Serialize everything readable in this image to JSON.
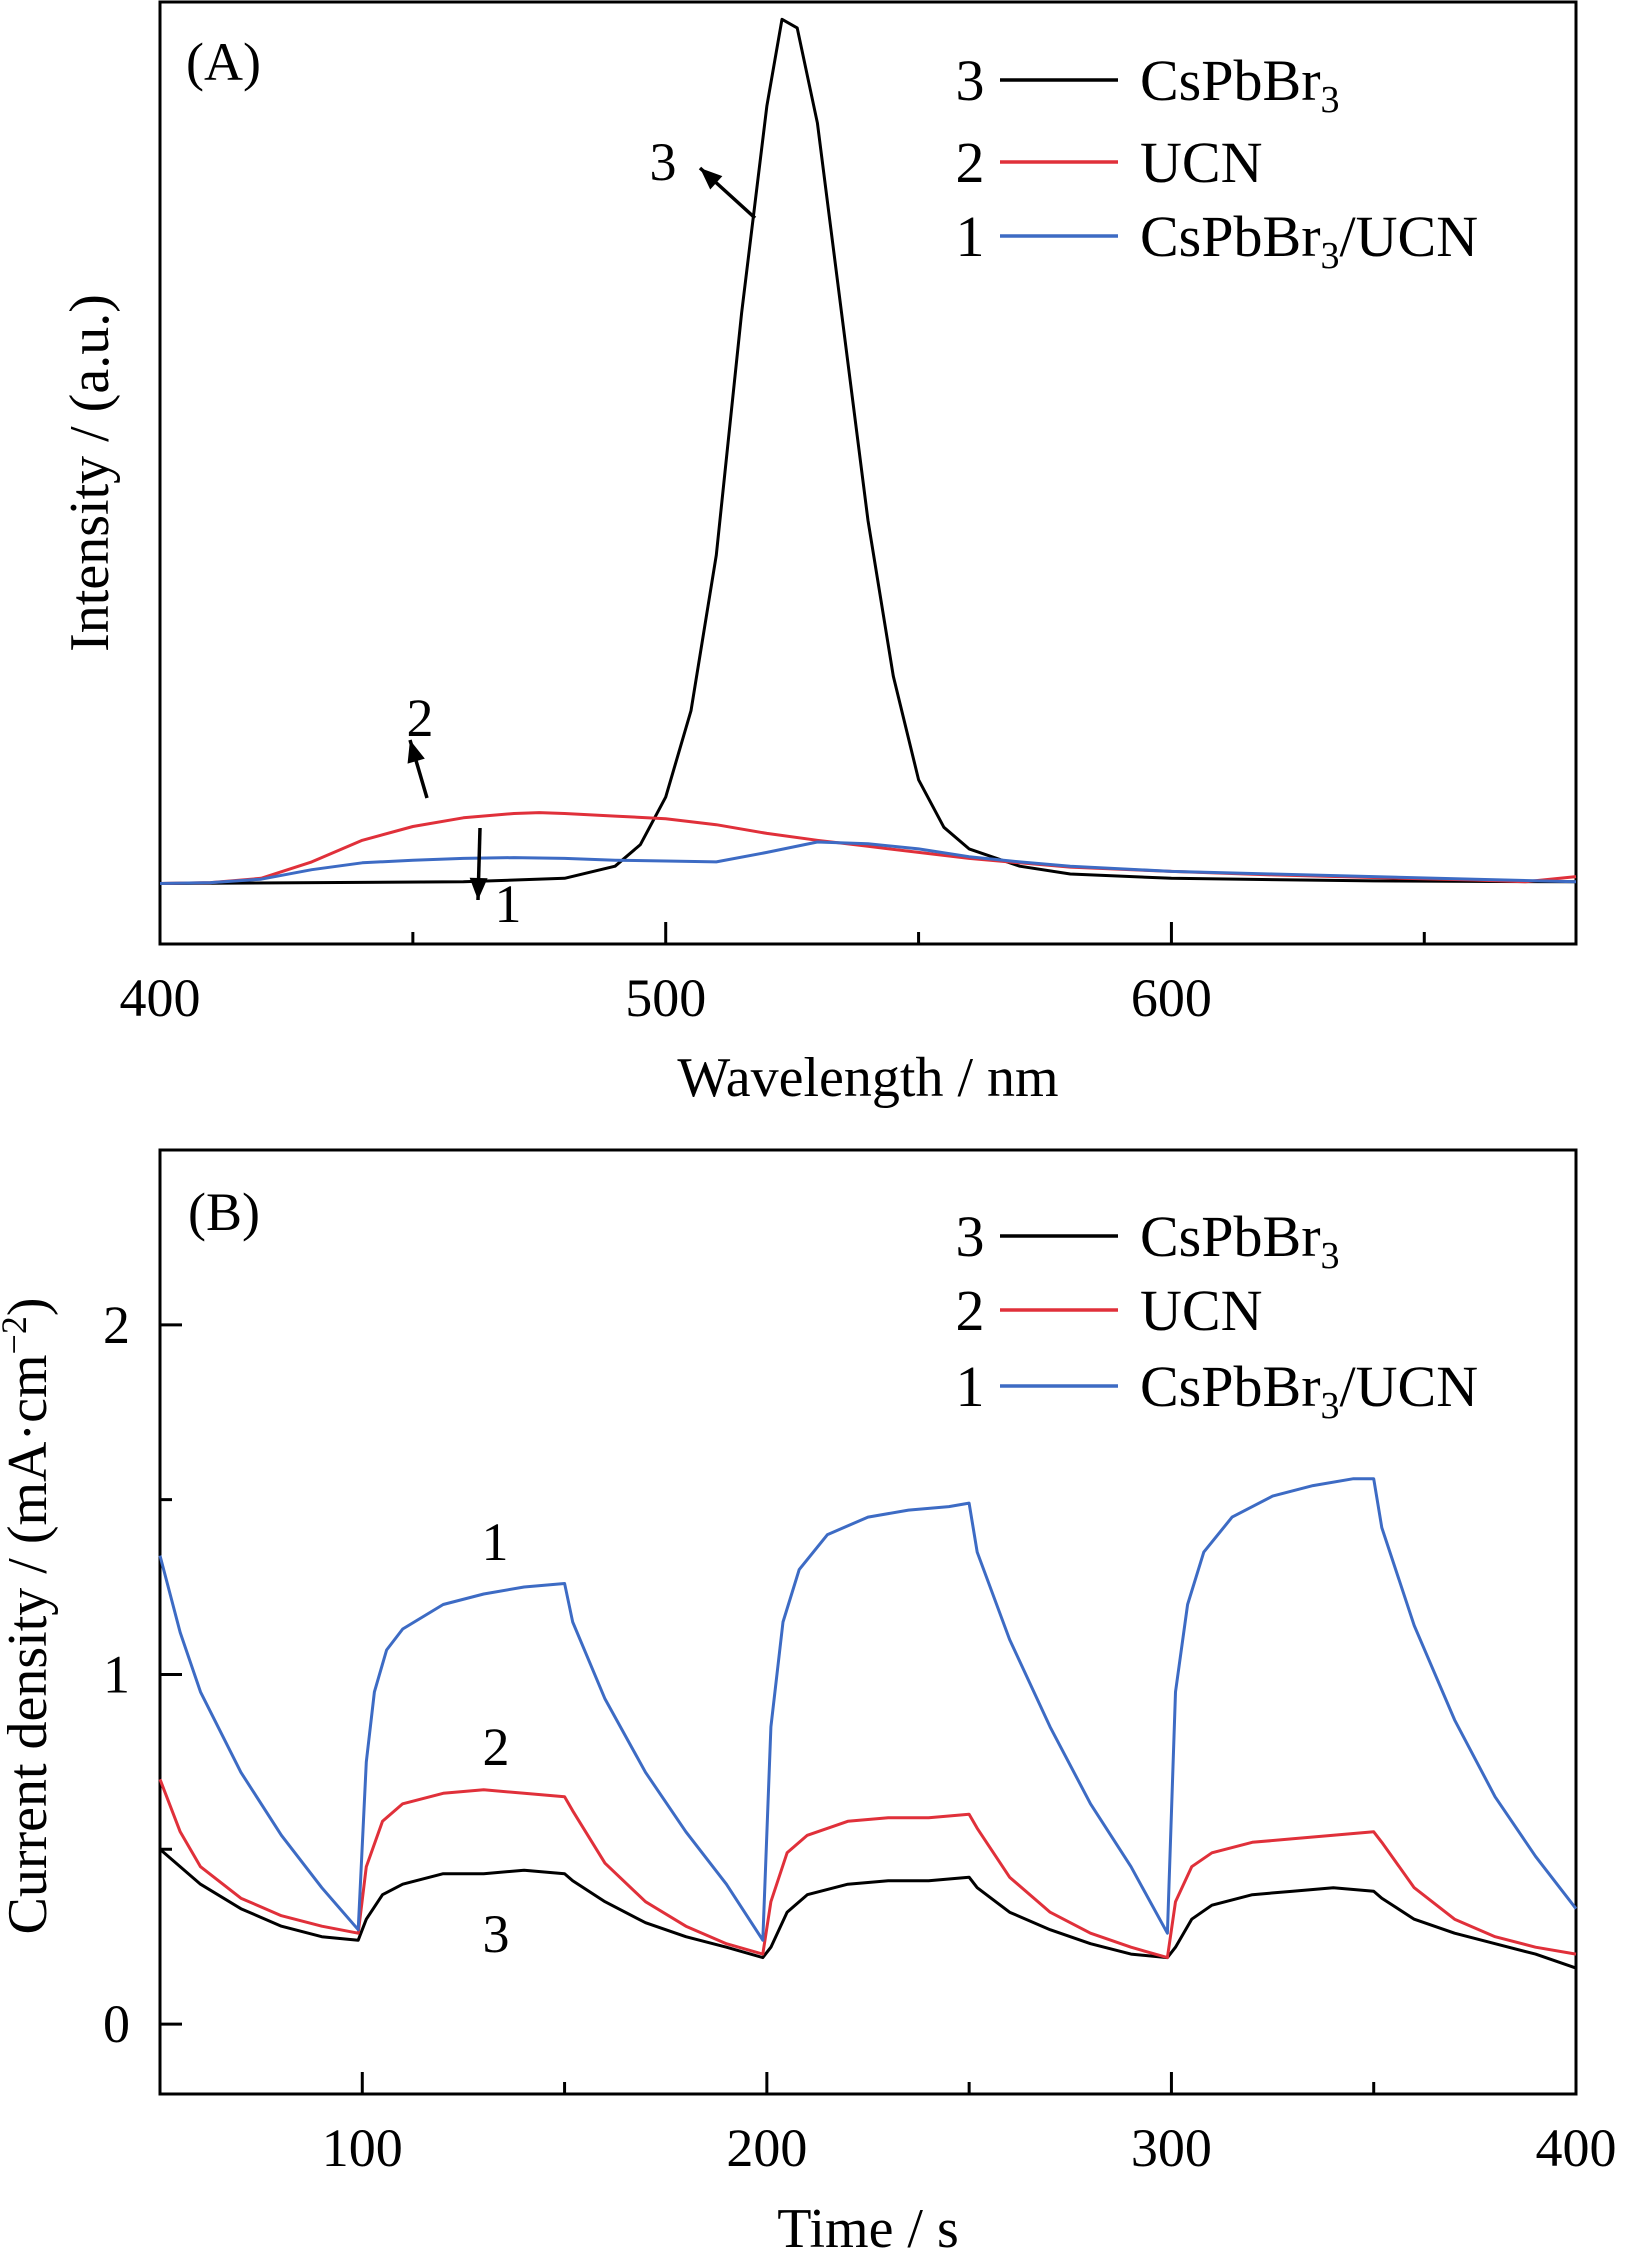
{
  "chart_data": [
    {
      "type": "line",
      "panel": "(A)",
      "xlabel": "Wavelength / nm",
      "ylabel": "Intensity / (a.u.)",
      "xlim": [
        400,
        680
      ],
      "ylim": [
        -0.07,
        1.02
      ],
      "xticks": [
        400,
        500,
        600
      ],
      "xminor": [
        450,
        550,
        650
      ],
      "legend_position": "top-right",
      "series": [
        {
          "id": "3",
          "name": "CsPbBr3",
          "label_sub": "3",
          "label_rest": "",
          "color": "#000000",
          "points": [
            [
              400,
              0
            ],
            [
              460,
              0.002
            ],
            [
              480,
              0.006
            ],
            [
              490,
              0.02
            ],
            [
              495,
              0.045
            ],
            [
              500,
              0.1
            ],
            [
              505,
              0.2
            ],
            [
              510,
              0.38
            ],
            [
              515,
              0.66
            ],
            [
              520,
              0.9
            ],
            [
              523,
              1.0
            ],
            [
              526,
              0.99
            ],
            [
              530,
              0.88
            ],
            [
              535,
              0.65
            ],
            [
              540,
              0.42
            ],
            [
              545,
              0.24
            ],
            [
              550,
              0.12
            ],
            [
              555,
              0.065
            ],
            [
              560,
              0.04
            ],
            [
              570,
              0.02
            ],
            [
              580,
              0.011
            ],
            [
              600,
              0.006
            ],
            [
              640,
              0.003
            ],
            [
              680,
              0.002
            ]
          ]
        },
        {
          "id": "2",
          "name": "UCN",
          "label_sub": "",
          "label_rest": "",
          "color": "#e0303a",
          "points": [
            [
              400,
              0
            ],
            [
              410,
              0.001
            ],
            [
              420,
              0.006
            ],
            [
              430,
              0.025
            ],
            [
              440,
              0.05
            ],
            [
              450,
              0.066
            ],
            [
              460,
              0.076
            ],
            [
              470,
              0.081
            ],
            [
              475,
              0.082
            ],
            [
              480,
              0.081
            ],
            [
              490,
              0.078
            ],
            [
              500,
              0.075
            ],
            [
              510,
              0.068
            ],
            [
              520,
              0.058
            ],
            [
              530,
              0.05
            ],
            [
              540,
              0.043
            ],
            [
              550,
              0.036
            ],
            [
              560,
              0.029
            ],
            [
              570,
              0.024
            ],
            [
              580,
              0.019
            ],
            [
              600,
              0.014
            ],
            [
              620,
              0.01
            ],
            [
              640,
              0.007
            ],
            [
              660,
              0.004
            ],
            [
              670,
              0.002
            ],
            [
              680,
              0.008
            ]
          ]
        },
        {
          "id": "1",
          "name": "CsPbBr3/UCN",
          "label_sub": "3",
          "label_rest": "/UCN",
          "color": "#3d6bc4",
          "points": [
            [
              400,
              0
            ],
            [
              410,
              0.001
            ],
            [
              420,
              0.005
            ],
            [
              430,
              0.016
            ],
            [
              440,
              0.024
            ],
            [
              450,
              0.027
            ],
            [
              460,
              0.029
            ],
            [
              470,
              0.03
            ],
            [
              480,
              0.029
            ],
            [
              490,
              0.027
            ],
            [
              500,
              0.026
            ],
            [
              510,
              0.025
            ],
            [
              520,
              0.036
            ],
            [
              530,
              0.048
            ],
            [
              540,
              0.046
            ],
            [
              550,
              0.04
            ],
            [
              560,
              0.031
            ],
            [
              570,
              0.025
            ],
            [
              580,
              0.02
            ],
            [
              600,
              0.014
            ],
            [
              620,
              0.011
            ],
            [
              640,
              0.008
            ],
            [
              660,
              0.005
            ],
            [
              680,
              0.002
            ]
          ]
        }
      ],
      "annotations": [
        {
          "text": "3",
          "x": 503,
          "y": 0.88
        },
        {
          "text": "2",
          "x": 442,
          "y": 0.17
        },
        {
          "text": "1",
          "x": 469,
          "y": -0.06
        }
      ]
    },
    {
      "type": "line",
      "panel": "(B)",
      "xlabel": "Time / s",
      "ylabel": "Current density / (mA·cm",
      "ylabel_sup": "−2",
      "ylabel_tail": ")",
      "xlim": [
        50,
        400
      ],
      "ylim": [
        -0.2,
        2.5
      ],
      "xticks": [
        100,
        200,
        300,
        400
      ],
      "xminor": [
        150,
        250,
        350
      ],
      "yticks": [
        0,
        1,
        2
      ],
      "yminor": [
        0.5,
        1.5
      ],
      "legend_position": "top-right",
      "series": [
        {
          "id": "3",
          "name": "CsPbBr3",
          "label_sub": "3",
          "label_rest": "",
          "color": "#000000",
          "points": [
            [
              50,
              0.5
            ],
            [
              60,
              0.4
            ],
            [
              70,
              0.33
            ],
            [
              80,
              0.28
            ],
            [
              90,
              0.25
            ],
            [
              99,
              0.24
            ],
            [
              101,
              0.3
            ],
            [
              105,
              0.37
            ],
            [
              110,
              0.4
            ],
            [
              120,
              0.43
            ],
            [
              130,
              0.43
            ],
            [
              140,
              0.44
            ],
            [
              150,
              0.43
            ],
            [
              152,
              0.41
            ],
            [
              160,
              0.35
            ],
            [
              170,
              0.29
            ],
            [
              180,
              0.25
            ],
            [
              190,
              0.22
            ],
            [
              199,
              0.19
            ],
            [
              201,
              0.22
            ],
            [
              205,
              0.32
            ],
            [
              210,
              0.37
            ],
            [
              220,
              0.4
            ],
            [
              230,
              0.41
            ],
            [
              240,
              0.41
            ],
            [
              250,
              0.42
            ],
            [
              252,
              0.39
            ],
            [
              260,
              0.32
            ],
            [
              270,
              0.27
            ],
            [
              280,
              0.23
            ],
            [
              290,
              0.2
            ],
            [
              299,
              0.19
            ],
            [
              301,
              0.22
            ],
            [
              305,
              0.3
            ],
            [
              310,
              0.34
            ],
            [
              320,
              0.37
            ],
            [
              330,
              0.38
            ],
            [
              340,
              0.39
            ],
            [
              350,
              0.38
            ],
            [
              352,
              0.36
            ],
            [
              360,
              0.3
            ],
            [
              370,
              0.26
            ],
            [
              380,
              0.23
            ],
            [
              390,
              0.2
            ],
            [
              400,
              0.16
            ]
          ]
        },
        {
          "id": "2",
          "name": "UCN",
          "label_sub": "",
          "label_rest": "",
          "color": "#e0303a",
          "points": [
            [
              50,
              0.7
            ],
            [
              55,
              0.55
            ],
            [
              60,
              0.45
            ],
            [
              70,
              0.36
            ],
            [
              80,
              0.31
            ],
            [
              90,
              0.28
            ],
            [
              99,
              0.26
            ],
            [
              101,
              0.45
            ],
            [
              105,
              0.58
            ],
            [
              110,
              0.63
            ],
            [
              120,
              0.66
            ],
            [
              130,
              0.67
            ],
            [
              140,
              0.66
            ],
            [
              150,
              0.65
            ],
            [
              152,
              0.61
            ],
            [
              160,
              0.46
            ],
            [
              170,
              0.35
            ],
            [
              180,
              0.28
            ],
            [
              190,
              0.23
            ],
            [
              199,
              0.2
            ],
            [
              201,
              0.35
            ],
            [
              205,
              0.49
            ],
            [
              210,
              0.54
            ],
            [
              220,
              0.58
            ],
            [
              230,
              0.59
            ],
            [
              240,
              0.59
            ],
            [
              250,
              0.6
            ],
            [
              252,
              0.56
            ],
            [
              260,
              0.42
            ],
            [
              270,
              0.32
            ],
            [
              280,
              0.26
            ],
            [
              290,
              0.22
            ],
            [
              299,
              0.19
            ],
            [
              301,
              0.35
            ],
            [
              305,
              0.45
            ],
            [
              310,
              0.49
            ],
            [
              320,
              0.52
            ],
            [
              330,
              0.53
            ],
            [
              340,
              0.54
            ],
            [
              350,
              0.55
            ],
            [
              352,
              0.52
            ],
            [
              360,
              0.39
            ],
            [
              370,
              0.3
            ],
            [
              380,
              0.25
            ],
            [
              390,
              0.22
            ],
            [
              400,
              0.2
            ]
          ]
        },
        {
          "id": "1",
          "name": "CsPbBr3/UCN",
          "label_sub": "3",
          "label_rest": "/UCN",
          "color": "#3d6bc4",
          "points": [
            [
              50,
              1.34
            ],
            [
              55,
              1.12
            ],
            [
              60,
              0.95
            ],
            [
              70,
              0.72
            ],
            [
              80,
              0.54
            ],
            [
              90,
              0.39
            ],
            [
              99,
              0.27
            ],
            [
              101,
              0.75
            ],
            [
              103,
              0.95
            ],
            [
              106,
              1.07
            ],
            [
              110,
              1.13
            ],
            [
              120,
              1.2
            ],
            [
              130,
              1.23
            ],
            [
              140,
              1.25
            ],
            [
              150,
              1.26
            ],
            [
              152,
              1.15
            ],
            [
              160,
              0.93
            ],
            [
              170,
              0.72
            ],
            [
              180,
              0.55
            ],
            [
              190,
              0.4
            ],
            [
              199,
              0.24
            ],
            [
              201,
              0.85
            ],
            [
              204,
              1.15
            ],
            [
              208,
              1.3
            ],
            [
              215,
              1.4
            ],
            [
              225,
              1.45
            ],
            [
              235,
              1.47
            ],
            [
              245,
              1.48
            ],
            [
              250,
              1.49
            ],
            [
              252,
              1.35
            ],
            [
              260,
              1.1
            ],
            [
              270,
              0.85
            ],
            [
              280,
              0.63
            ],
            [
              290,
              0.45
            ],
            [
              299,
              0.26
            ],
            [
              301,
              0.95
            ],
            [
              304,
              1.2
            ],
            [
              308,
              1.35
            ],
            [
              315,
              1.45
            ],
            [
              325,
              1.51
            ],
            [
              335,
              1.54
            ],
            [
              345,
              1.56
            ],
            [
              350,
              1.56
            ],
            [
              352,
              1.42
            ],
            [
              360,
              1.14
            ],
            [
              370,
              0.87
            ],
            [
              380,
              0.65
            ],
            [
              390,
              0.48
            ],
            [
              400,
              0.33
            ]
          ]
        }
      ],
      "annotations": [
        {
          "text": "1",
          "x": 133,
          "y": 1.34
        },
        {
          "text": "2",
          "x": 134,
          "y": 0.74
        },
        {
          "text": "3",
          "x": 134,
          "y": 0.25
        }
      ]
    }
  ]
}
